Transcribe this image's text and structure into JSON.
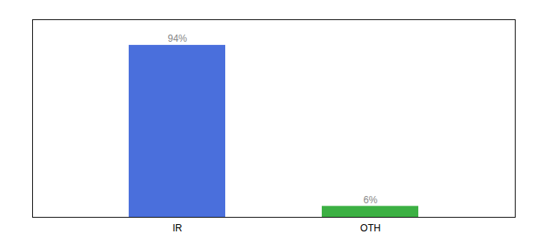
{
  "chart_data": {
    "type": "bar",
    "categories": [
      "IR",
      "OTH"
    ],
    "values": [
      94,
      6
    ],
    "value_labels": [
      "94%",
      "6%"
    ],
    "colors": [
      "#4a6fdc",
      "#3cb043"
    ],
    "ylim": [
      0,
      108
    ],
    "yticks": [],
    "data_labels": true,
    "tick_labels": "x"
  }
}
